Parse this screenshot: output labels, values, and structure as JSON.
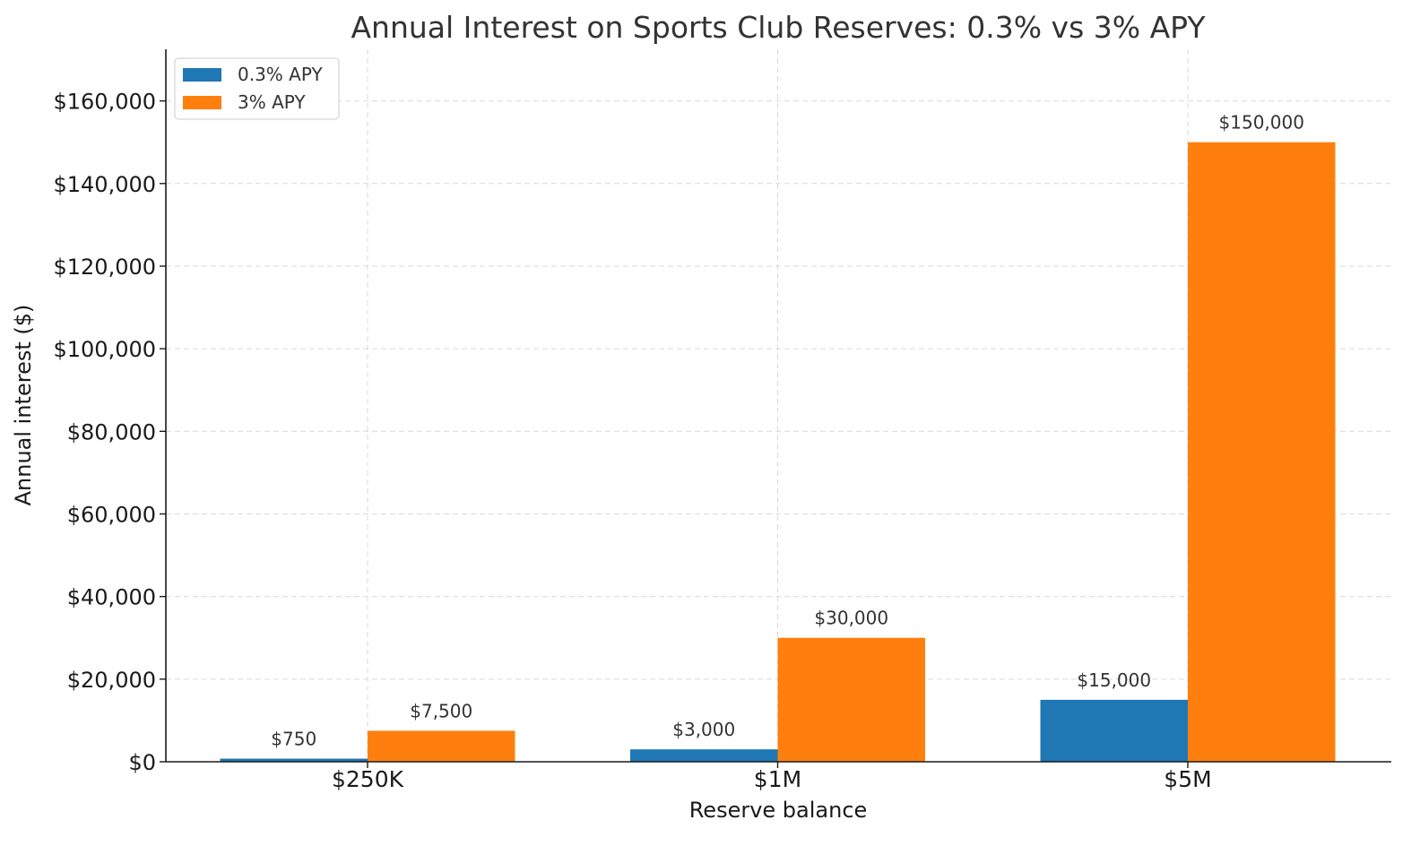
{
  "chart_data": {
    "type": "bar",
    "title": "Annual Interest on Sports Club Reserves: 0.3% vs 3% APY",
    "xlabel": "Reserve balance",
    "ylabel": "Annual interest ($)",
    "categories": [
      "$250K",
      "$1M",
      "$5M"
    ],
    "series": [
      {
        "name": "0.3% APY",
        "color": "#1f77b4",
        "values": [
          750,
          3000,
          15000
        ],
        "labels": [
          "$750",
          "$3,000",
          "$15,000"
        ]
      },
      {
        "name": "3% APY",
        "color": "#ff7f0e",
        "values": [
          7500,
          30000,
          150000
        ],
        "labels": [
          "$7,500",
          "$30,000",
          "$150,000"
        ]
      }
    ],
    "ylim": [
      0,
      172500
    ],
    "yticks": [
      0,
      20000,
      40000,
      60000,
      80000,
      100000,
      120000,
      140000,
      160000
    ],
    "ytick_labels": [
      "$0",
      "$20,000",
      "$40,000",
      "$60,000",
      "$80,000",
      "$100,000",
      "$120,000",
      "$140,000",
      "$160,000"
    ],
    "grid": true,
    "legend_position": "top-left"
  }
}
